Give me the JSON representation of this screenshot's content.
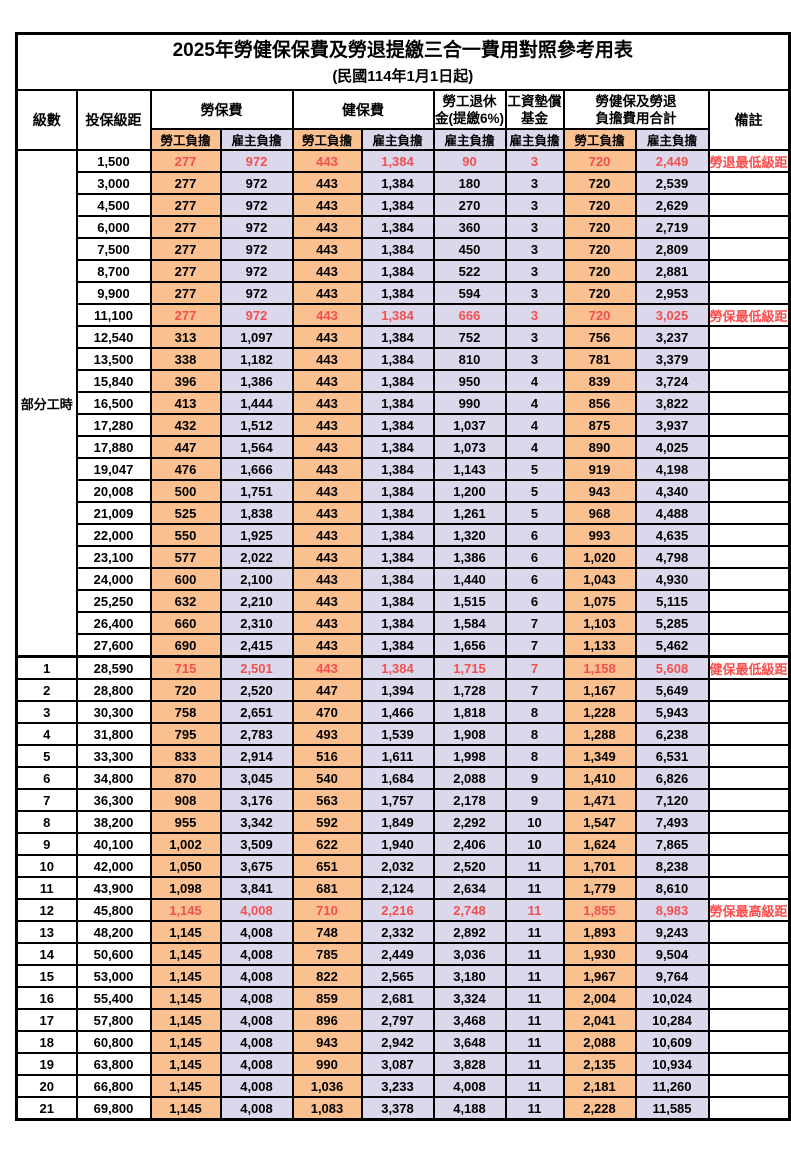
{
  "table": {
    "title": "2025年勞健保保費及勞退提繳三合一費用對照參考用表",
    "subtitle": "(民國114年1月1日起)",
    "headers": {
      "level": "級數",
      "bracket": "投保級距",
      "labor_ins": "勞保費",
      "health_ins": "健保費",
      "pension": "勞工退休\n金(提繳6%)",
      "wage_fund": "工資墊償\n基金",
      "combined": "勞健保及勞退\n負擔費用合計",
      "remark": "備註",
      "employee": "勞工負擔",
      "employer": "雇主負擔"
    },
    "colors": {
      "employee_bg": "#FAC090",
      "employer_bg": "#DBD8EC",
      "highlight_text": "#F25050",
      "remark_text": "#FF4D4D"
    },
    "part_time_label": "部分工時",
    "part_time_rowspan": 23,
    "rows": [
      {
        "level": "",
        "bracket": "1,500",
        "labor_emp": "277",
        "labor_er": "972",
        "health_emp": "443",
        "health_er": "1,384",
        "pension_er": "90",
        "wage_fund_er": "3",
        "total_emp": "720",
        "total_er": "2,449",
        "remark": "勞退最低級距",
        "highlight": true,
        "bold": false,
        "section_start": false
      },
      {
        "level": "",
        "bracket": "3,000",
        "labor_emp": "277",
        "labor_er": "972",
        "health_emp": "443",
        "health_er": "1,384",
        "pension_er": "180",
        "wage_fund_er": "3",
        "total_emp": "720",
        "total_er": "2,539",
        "remark": "",
        "highlight": false,
        "bold": false,
        "section_start": false
      },
      {
        "level": "",
        "bracket": "4,500",
        "labor_emp": "277",
        "labor_er": "972",
        "health_emp": "443",
        "health_er": "1,384",
        "pension_er": "270",
        "wage_fund_er": "3",
        "total_emp": "720",
        "total_er": "2,629",
        "remark": "",
        "highlight": false,
        "bold": false,
        "section_start": false
      },
      {
        "level": "",
        "bracket": "6,000",
        "labor_emp": "277",
        "labor_er": "972",
        "health_emp": "443",
        "health_er": "1,384",
        "pension_er": "360",
        "wage_fund_er": "3",
        "total_emp": "720",
        "total_er": "2,719",
        "remark": "",
        "highlight": false,
        "bold": false,
        "section_start": false
      },
      {
        "level": "",
        "bracket": "7,500",
        "labor_emp": "277",
        "labor_er": "972",
        "health_emp": "443",
        "health_er": "1,384",
        "pension_er": "450",
        "wage_fund_er": "3",
        "total_emp": "720",
        "total_er": "2,809",
        "remark": "",
        "highlight": false,
        "bold": false,
        "section_start": false
      },
      {
        "level": "",
        "bracket": "8,700",
        "labor_emp": "277",
        "labor_er": "972",
        "health_emp": "443",
        "health_er": "1,384",
        "pension_er": "522",
        "wage_fund_er": "3",
        "total_emp": "720",
        "total_er": "2,881",
        "remark": "",
        "highlight": false,
        "bold": false,
        "section_start": false
      },
      {
        "level": "",
        "bracket": "9,900",
        "labor_emp": "277",
        "labor_er": "972",
        "health_emp": "443",
        "health_er": "1,384",
        "pension_er": "594",
        "wage_fund_er": "3",
        "total_emp": "720",
        "total_er": "2,953",
        "remark": "",
        "highlight": false,
        "bold": false,
        "section_start": false
      },
      {
        "level": "",
        "bracket": "11,100",
        "labor_emp": "277",
        "labor_er": "972",
        "health_emp": "443",
        "health_er": "1,384",
        "pension_er": "666",
        "wage_fund_er": "3",
        "total_emp": "720",
        "total_er": "3,025",
        "remark": "勞保最低級距",
        "highlight": true,
        "bold": false,
        "section_start": false
      },
      {
        "level": "",
        "bracket": "12,540",
        "labor_emp": "313",
        "labor_er": "1,097",
        "health_emp": "443",
        "health_er": "1,384",
        "pension_er": "752",
        "wage_fund_er": "3",
        "total_emp": "756",
        "total_er": "3,237",
        "remark": "",
        "highlight": false,
        "bold": false,
        "section_start": false
      },
      {
        "level": "",
        "bracket": "13,500",
        "labor_emp": "338",
        "labor_er": "1,182",
        "health_emp": "443",
        "health_er": "1,384",
        "pension_er": "810",
        "wage_fund_er": "3",
        "total_emp": "781",
        "total_er": "3,379",
        "remark": "",
        "highlight": false,
        "bold": false,
        "section_start": false
      },
      {
        "level": "",
        "bracket": "15,840",
        "labor_emp": "396",
        "labor_er": "1,386",
        "health_emp": "443",
        "health_er": "1,384",
        "pension_er": "950",
        "wage_fund_er": "4",
        "total_emp": "839",
        "total_er": "3,724",
        "remark": "",
        "highlight": false,
        "bold": false,
        "section_start": false
      },
      {
        "level": "",
        "bracket": "16,500",
        "labor_emp": "413",
        "labor_er": "1,444",
        "health_emp": "443",
        "health_er": "1,384",
        "pension_er": "990",
        "wage_fund_er": "4",
        "total_emp": "856",
        "total_er": "3,822",
        "remark": "",
        "highlight": false,
        "bold": false,
        "section_start": false
      },
      {
        "level": "",
        "bracket": "17,280",
        "labor_emp": "432",
        "labor_er": "1,512",
        "health_emp": "443",
        "health_er": "1,384",
        "pension_er": "1,037",
        "wage_fund_er": "4",
        "total_emp": "875",
        "total_er": "3,937",
        "remark": "",
        "highlight": false,
        "bold": false,
        "section_start": false
      },
      {
        "level": "",
        "bracket": "17,880",
        "labor_emp": "447",
        "labor_er": "1,564",
        "health_emp": "443",
        "health_er": "1,384",
        "pension_er": "1,073",
        "wage_fund_er": "4",
        "total_emp": "890",
        "total_er": "4,025",
        "remark": "",
        "highlight": false,
        "bold": false,
        "section_start": false
      },
      {
        "level": "",
        "bracket": "19,047",
        "labor_emp": "476",
        "labor_er": "1,666",
        "health_emp": "443",
        "health_er": "1,384",
        "pension_er": "1,143",
        "wage_fund_er": "5",
        "total_emp": "919",
        "total_er": "4,198",
        "remark": "",
        "highlight": false,
        "bold": false,
        "section_start": false
      },
      {
        "level": "",
        "bracket": "20,008",
        "labor_emp": "500",
        "labor_er": "1,751",
        "health_emp": "443",
        "health_er": "1,384",
        "pension_er": "1,200",
        "wage_fund_er": "5",
        "total_emp": "943",
        "total_er": "4,340",
        "remark": "",
        "highlight": false,
        "bold": false,
        "section_start": false
      },
      {
        "level": "",
        "bracket": "21,009",
        "labor_emp": "525",
        "labor_er": "1,838",
        "health_emp": "443",
        "health_er": "1,384",
        "pension_er": "1,261",
        "wage_fund_er": "5",
        "total_emp": "968",
        "total_er": "4,488",
        "remark": "",
        "highlight": false,
        "bold": false,
        "section_start": false
      },
      {
        "level": "",
        "bracket": "22,000",
        "labor_emp": "550",
        "labor_er": "1,925",
        "health_emp": "443",
        "health_er": "1,384",
        "pension_er": "1,320",
        "wage_fund_er": "6",
        "total_emp": "993",
        "total_er": "4,635",
        "remark": "",
        "highlight": false,
        "bold": false,
        "section_start": false
      },
      {
        "level": "",
        "bracket": "23,100",
        "labor_emp": "577",
        "labor_er": "2,022",
        "health_emp": "443",
        "health_er": "1,384",
        "pension_er": "1,386",
        "wage_fund_er": "6",
        "total_emp": "1,020",
        "total_er": "4,798",
        "remark": "",
        "highlight": false,
        "bold": false,
        "section_start": false
      },
      {
        "level": "",
        "bracket": "24,000",
        "labor_emp": "600",
        "labor_er": "2,100",
        "health_emp": "443",
        "health_er": "1,384",
        "pension_er": "1,440",
        "wage_fund_er": "6",
        "total_emp": "1,043",
        "total_er": "4,930",
        "remark": "",
        "highlight": false,
        "bold": false,
        "section_start": false
      },
      {
        "level": "",
        "bracket": "25,250",
        "labor_emp": "632",
        "labor_er": "2,210",
        "health_emp": "443",
        "health_er": "1,384",
        "pension_er": "1,515",
        "wage_fund_er": "6",
        "total_emp": "1,075",
        "total_er": "5,115",
        "remark": "",
        "highlight": false,
        "bold": false,
        "section_start": false
      },
      {
        "level": "",
        "bracket": "26,400",
        "labor_emp": "660",
        "labor_er": "2,310",
        "health_emp": "443",
        "health_er": "1,384",
        "pension_er": "1,584",
        "wage_fund_er": "7",
        "total_emp": "1,103",
        "total_er": "5,285",
        "remark": "",
        "highlight": false,
        "bold": false,
        "section_start": false
      },
      {
        "level": "",
        "bracket": "27,600",
        "labor_emp": "690",
        "labor_er": "2,415",
        "health_emp": "443",
        "health_er": "1,384",
        "pension_er": "1,656",
        "wage_fund_er": "7",
        "total_emp": "1,133",
        "total_er": "5,462",
        "remark": "",
        "highlight": false,
        "bold": false,
        "section_start": false
      },
      {
        "level": "1",
        "bracket": "28,590",
        "labor_emp": "715",
        "labor_er": "2,501",
        "health_emp": "443",
        "health_er": "1,384",
        "pension_er": "1,715",
        "wage_fund_er": "7",
        "total_emp": "1,158",
        "total_er": "5,608",
        "remark": "健保最低級距",
        "highlight": true,
        "bold": true,
        "section_start": true
      },
      {
        "level": "2",
        "bracket": "28,800",
        "labor_emp": "720",
        "labor_er": "2,520",
        "health_emp": "447",
        "health_er": "1,394",
        "pension_er": "1,728",
        "wage_fund_er": "7",
        "total_emp": "1,167",
        "total_er": "5,649",
        "remark": "",
        "highlight": false,
        "bold": false,
        "section_start": false
      },
      {
        "level": "3",
        "bracket": "30,300",
        "labor_emp": "758",
        "labor_er": "2,651",
        "health_emp": "470",
        "health_er": "1,466",
        "pension_er": "1,818",
        "wage_fund_er": "8",
        "total_emp": "1,228",
        "total_er": "5,943",
        "remark": "",
        "highlight": false,
        "bold": false,
        "section_start": false
      },
      {
        "level": "4",
        "bracket": "31,800",
        "labor_emp": "795",
        "labor_er": "2,783",
        "health_emp": "493",
        "health_er": "1,539",
        "pension_er": "1,908",
        "wage_fund_er": "8",
        "total_emp": "1,288",
        "total_er": "6,238",
        "remark": "",
        "highlight": false,
        "bold": false,
        "section_start": false
      },
      {
        "level": "5",
        "bracket": "33,300",
        "labor_emp": "833",
        "labor_er": "2,914",
        "health_emp": "516",
        "health_er": "1,611",
        "pension_er": "1,998",
        "wage_fund_er": "8",
        "total_emp": "1,349",
        "total_er": "6,531",
        "remark": "",
        "highlight": false,
        "bold": false,
        "section_start": false
      },
      {
        "level": "6",
        "bracket": "34,800",
        "labor_emp": "870",
        "labor_er": "3,045",
        "health_emp": "540",
        "health_er": "1,684",
        "pension_er": "2,088",
        "wage_fund_er": "9",
        "total_emp": "1,410",
        "total_er": "6,826",
        "remark": "",
        "highlight": false,
        "bold": false,
        "section_start": false
      },
      {
        "level": "7",
        "bracket": "36,300",
        "labor_emp": "908",
        "labor_er": "3,176",
        "health_emp": "563",
        "health_er": "1,757",
        "pension_er": "2,178",
        "wage_fund_er": "9",
        "total_emp": "1,471",
        "total_er": "7,120",
        "remark": "",
        "highlight": false,
        "bold": false,
        "section_start": false
      },
      {
        "level": "8",
        "bracket": "38,200",
        "labor_emp": "955",
        "labor_er": "3,342",
        "health_emp": "592",
        "health_er": "1,849",
        "pension_er": "2,292",
        "wage_fund_er": "10",
        "total_emp": "1,547",
        "total_er": "7,493",
        "remark": "",
        "highlight": false,
        "bold": false,
        "section_start": false
      },
      {
        "level": "9",
        "bracket": "40,100",
        "labor_emp": "1,002",
        "labor_er": "3,509",
        "health_emp": "622",
        "health_er": "1,940",
        "pension_er": "2,406",
        "wage_fund_er": "10",
        "total_emp": "1,624",
        "total_er": "7,865",
        "remark": "",
        "highlight": false,
        "bold": false,
        "section_start": false
      },
      {
        "level": "10",
        "bracket": "42,000",
        "labor_emp": "1,050",
        "labor_er": "3,675",
        "health_emp": "651",
        "health_er": "2,032",
        "pension_er": "2,520",
        "wage_fund_er": "11",
        "total_emp": "1,701",
        "total_er": "8,238",
        "remark": "",
        "highlight": false,
        "bold": false,
        "section_start": false
      },
      {
        "level": "11",
        "bracket": "43,900",
        "labor_emp": "1,098",
        "labor_er": "3,841",
        "health_emp": "681",
        "health_er": "2,124",
        "pension_er": "2,634",
        "wage_fund_er": "11",
        "total_emp": "1,779",
        "total_er": "8,610",
        "remark": "",
        "highlight": false,
        "bold": false,
        "section_start": false
      },
      {
        "level": "12",
        "bracket": "45,800",
        "labor_emp": "1,145",
        "labor_er": "4,008",
        "health_emp": "710",
        "health_er": "2,216",
        "pension_er": "2,748",
        "wage_fund_er": "11",
        "total_emp": "1,855",
        "total_er": "8,983",
        "remark": "勞保最高級距",
        "highlight": true,
        "bold": true,
        "section_start": false
      },
      {
        "level": "13",
        "bracket": "48,200",
        "labor_emp": "1,145",
        "labor_er": "4,008",
        "health_emp": "748",
        "health_er": "2,332",
        "pension_er": "2,892",
        "wage_fund_er": "11",
        "total_emp": "1,893",
        "total_er": "9,243",
        "remark": "",
        "highlight": false,
        "bold": false,
        "section_start": false
      },
      {
        "level": "14",
        "bracket": "50,600",
        "labor_emp": "1,145",
        "labor_er": "4,008",
        "health_emp": "785",
        "health_er": "2,449",
        "pension_er": "3,036",
        "wage_fund_er": "11",
        "total_emp": "1,930",
        "total_er": "9,504",
        "remark": "",
        "highlight": false,
        "bold": false,
        "section_start": false
      },
      {
        "level": "15",
        "bracket": "53,000",
        "labor_emp": "1,145",
        "labor_er": "4,008",
        "health_emp": "822",
        "health_er": "2,565",
        "pension_er": "3,180",
        "wage_fund_er": "11",
        "total_emp": "1,967",
        "total_er": "9,764",
        "remark": "",
        "highlight": false,
        "bold": false,
        "section_start": false
      },
      {
        "level": "16",
        "bracket": "55,400",
        "labor_emp": "1,145",
        "labor_er": "4,008",
        "health_emp": "859",
        "health_er": "2,681",
        "pension_er": "3,324",
        "wage_fund_er": "11",
        "total_emp": "2,004",
        "total_er": "10,024",
        "remark": "",
        "highlight": false,
        "bold": false,
        "section_start": false
      },
      {
        "level": "17",
        "bracket": "57,800",
        "labor_emp": "1,145",
        "labor_er": "4,008",
        "health_emp": "896",
        "health_er": "2,797",
        "pension_er": "3,468",
        "wage_fund_er": "11",
        "total_emp": "2,041",
        "total_er": "10,284",
        "remark": "",
        "highlight": false,
        "bold": false,
        "section_start": false
      },
      {
        "level": "18",
        "bracket": "60,800",
        "labor_emp": "1,145",
        "labor_er": "4,008",
        "health_emp": "943",
        "health_er": "2,942",
        "pension_er": "3,648",
        "wage_fund_er": "11",
        "total_emp": "2,088",
        "total_er": "10,609",
        "remark": "",
        "highlight": false,
        "bold": false,
        "section_start": false
      },
      {
        "level": "19",
        "bracket": "63,800",
        "labor_emp": "1,145",
        "labor_er": "4,008",
        "health_emp": "990",
        "health_er": "3,087",
        "pension_er": "3,828",
        "wage_fund_er": "11",
        "total_emp": "2,135",
        "total_er": "10,934",
        "remark": "",
        "highlight": false,
        "bold": false,
        "section_start": false
      },
      {
        "level": "20",
        "bracket": "66,800",
        "labor_emp": "1,145",
        "labor_er": "4,008",
        "health_emp": "1,036",
        "health_er": "3,233",
        "pension_er": "4,008",
        "wage_fund_er": "11",
        "total_emp": "2,181",
        "total_er": "11,260",
        "remark": "",
        "highlight": false,
        "bold": false,
        "section_start": false
      },
      {
        "level": "21",
        "bracket": "69,800",
        "labor_emp": "1,145",
        "labor_er": "4,008",
        "health_emp": "1,083",
        "health_er": "3,378",
        "pension_er": "4,188",
        "wage_fund_er": "11",
        "total_emp": "2,228",
        "total_er": "11,585",
        "remark": "",
        "highlight": false,
        "bold": false,
        "section_start": false
      }
    ]
  }
}
